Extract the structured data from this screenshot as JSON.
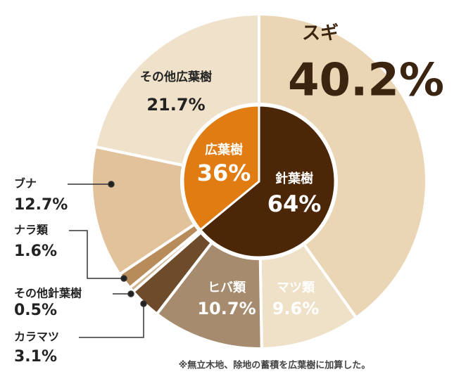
{
  "chart_data": [
    {
      "type": "pie",
      "categories": [
        "スギ",
        "マツ類",
        "ヒバ類",
        "カラマツ",
        "その他針葉樹",
        "ナラ類",
        "ブナ",
        "その他広葉樹"
      ],
      "values": [
        40.2,
        9.6,
        10.7,
        3.1,
        0.5,
        1.6,
        12.7,
        21.7
      ],
      "value_labels": [
        "40.2%",
        "9.6%",
        "10.7%",
        "3.1%",
        "0.5%",
        "1.6%",
        "12.7%",
        "21.7%"
      ],
      "colors": [
        "#ead6b4",
        "#efe1c8",
        "#a68b6e",
        "#6e4b2a",
        "#cdb48f",
        "#b88b5b",
        "#e2c29a",
        "#f0e2ca"
      ]
    },
    {
      "type": "pie",
      "categories": [
        "針葉樹",
        "広葉樹"
      ],
      "values": [
        64,
        36
      ],
      "value_labels": [
        "64%",
        "36%"
      ],
      "colors": [
        "#4b2708",
        "#e07c12"
      ]
    }
  ],
  "note": "※無立木地、除地の蓄積を広葉樹に加算した。"
}
